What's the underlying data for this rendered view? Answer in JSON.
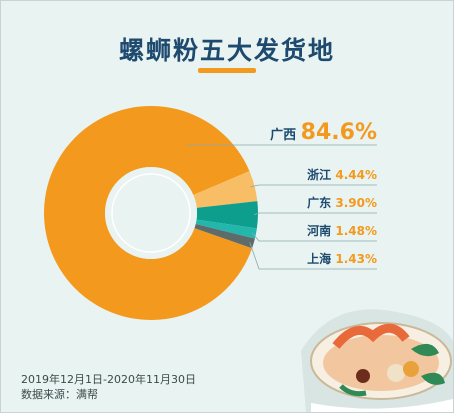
{
  "title": "螺蛳粉五大发货地",
  "chart_data": {
    "type": "pie",
    "style": "donut",
    "title": "螺蛳粉五大发货地",
    "categories": [
      "广西",
      "浙江",
      "广东",
      "河南",
      "上海"
    ],
    "values": [
      84.6,
      4.44,
      3.9,
      1.48,
      1.43
    ],
    "labels": [
      "84.6%",
      "4.44%",
      "3.90%",
      "1.48%",
      "1.43%"
    ],
    "colors": [
      "#f39a1e",
      "#f7be66",
      "#0e9e8e",
      "#23b6ad",
      "#5e6b6b"
    ]
  },
  "footer": {
    "period": "2019年12月1日-2020年11月30日",
    "source": "数据来源：满帮"
  }
}
